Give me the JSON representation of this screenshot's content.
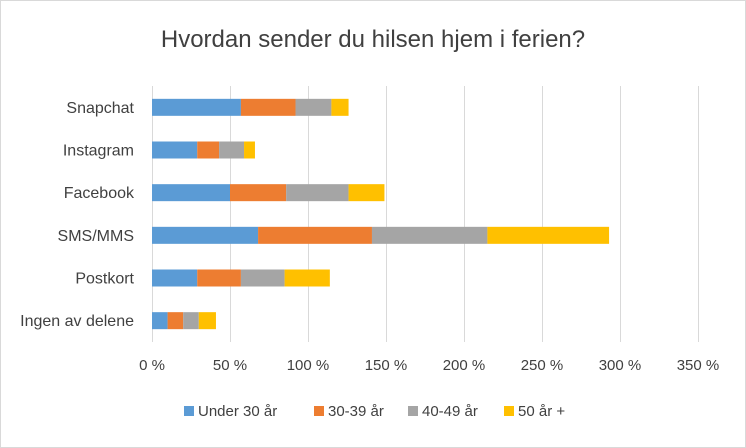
{
  "chart_data": {
    "type": "bar",
    "orientation": "horizontal",
    "stacked": true,
    "title": "Hvordan sender du hilsen hjem i ferien?",
    "categories": [
      "Snapchat",
      "Instagram",
      "Facebook",
      "SMS/MMS",
      "Postkort",
      "Ingen av delene"
    ],
    "series": [
      {
        "name": "Under 30 år",
        "color": "#5b9bd5",
        "values": [
          57,
          29,
          50,
          68,
          29,
          10
        ]
      },
      {
        "name": "30-39 år",
        "color": "#ed7d31",
        "values": [
          35,
          14,
          36,
          73,
          28,
          10
        ]
      },
      {
        "name": "40-49 år",
        "color": "#a5a5a5",
        "values": [
          23,
          16,
          40,
          74,
          28,
          10
        ]
      },
      {
        "name": "50 år +",
        "color": "#ffc000",
        "values": [
          11,
          7,
          23,
          78,
          29,
          11
        ]
      }
    ],
    "xlim": [
      0,
      350
    ],
    "xticks": [
      0,
      50,
      100,
      150,
      200,
      250,
      300,
      350
    ],
    "xtick_labels": [
      "0 %",
      "50 %",
      "100 %",
      "150 %",
      "200 %",
      "250 %",
      "300 %",
      "350 %"
    ],
    "grid": true,
    "legend_position": "bottom"
  }
}
